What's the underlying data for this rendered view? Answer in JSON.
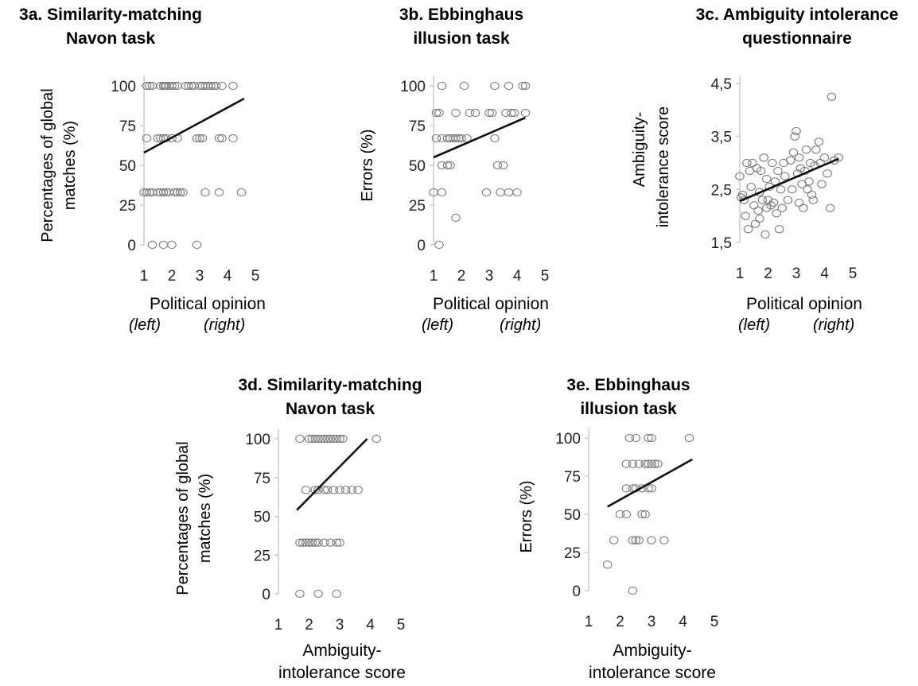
{
  "chart_data": [
    {
      "id": "3a",
      "type": "scatter",
      "title_lines": [
        "3a. Similarity-matching",
        "Navon task"
      ],
      "ylabel_lines": [
        "Percentages of global",
        "matches (%)"
      ],
      "xlabel": "Political opinion",
      "x_end_left": "(left)",
      "x_end_right": "(right)",
      "xlim": [
        1,
        5
      ],
      "ylim": [
        0,
        100
      ],
      "xticks": [
        "1",
        "2",
        "3",
        "4",
        "5"
      ],
      "yticks": [
        "0",
        "25",
        "50",
        "75",
        "100"
      ],
      "trendline": [
        [
          1,
          58
        ],
        [
          4.6,
          92
        ]
      ],
      "points": [
        [
          1.1,
          100
        ],
        [
          1.2,
          100
        ],
        [
          1.3,
          100
        ],
        [
          1.6,
          100
        ],
        [
          1.7,
          100
        ],
        [
          1.75,
          100
        ],
        [
          1.8,
          100
        ],
        [
          1.9,
          100
        ],
        [
          2.0,
          100
        ],
        [
          2.1,
          100
        ],
        [
          2.2,
          100
        ],
        [
          2.5,
          100
        ],
        [
          2.6,
          100
        ],
        [
          2.7,
          100
        ],
        [
          2.8,
          100
        ],
        [
          3.0,
          100
        ],
        [
          3.1,
          100
        ],
        [
          3.2,
          100
        ],
        [
          3.3,
          100
        ],
        [
          3.4,
          100
        ],
        [
          3.5,
          100
        ],
        [
          3.6,
          100
        ],
        [
          3.8,
          100
        ],
        [
          4.2,
          100
        ],
        [
          1.1,
          67
        ],
        [
          1.5,
          67
        ],
        [
          1.6,
          67
        ],
        [
          1.7,
          67
        ],
        [
          1.8,
          67
        ],
        [
          2.0,
          67
        ],
        [
          2.2,
          67
        ],
        [
          2.9,
          67
        ],
        [
          3.0,
          67
        ],
        [
          3.1,
          67
        ],
        [
          3.7,
          67
        ],
        [
          3.8,
          67
        ],
        [
          4.2,
          67
        ],
        [
          1.0,
          33
        ],
        [
          1.1,
          33
        ],
        [
          1.2,
          33
        ],
        [
          1.3,
          33
        ],
        [
          1.5,
          33
        ],
        [
          1.6,
          33
        ],
        [
          1.7,
          33
        ],
        [
          1.8,
          33
        ],
        [
          1.9,
          33
        ],
        [
          2.1,
          33
        ],
        [
          2.2,
          33
        ],
        [
          2.3,
          33
        ],
        [
          2.4,
          33
        ],
        [
          3.2,
          33
        ],
        [
          3.7,
          33
        ],
        [
          4.5,
          33
        ],
        [
          1.3,
          0
        ],
        [
          1.7,
          0
        ],
        [
          2.0,
          0
        ],
        [
          2.9,
          0
        ]
      ]
    },
    {
      "id": "3b",
      "type": "scatter",
      "title_lines": [
        "3b. Ebbinghaus",
        "illusion task"
      ],
      "ylabel_lines": [
        "Errors (%)"
      ],
      "xlabel": "Political opinion",
      "x_end_left": "(left)",
      "x_end_right": "(right)",
      "xlim": [
        1,
        5
      ],
      "ylim": [
        0,
        100
      ],
      "xticks": [
        "1",
        "2",
        "3",
        "4",
        "5"
      ],
      "yticks": [
        "0",
        "25",
        "50",
        "75",
        "100"
      ],
      "trendline": [
        [
          1,
          55
        ],
        [
          4.3,
          80
        ]
      ],
      "points": [
        [
          1.3,
          100
        ],
        [
          2.1,
          100
        ],
        [
          3.2,
          100
        ],
        [
          3.7,
          100
        ],
        [
          4.2,
          100
        ],
        [
          4.3,
          100
        ],
        [
          1.1,
          83
        ],
        [
          1.2,
          83
        ],
        [
          1.8,
          83
        ],
        [
          2.3,
          83
        ],
        [
          2.5,
          83
        ],
        [
          3.0,
          83
        ],
        [
          3.1,
          83
        ],
        [
          3.6,
          83
        ],
        [
          3.8,
          83
        ],
        [
          3.9,
          83
        ],
        [
          4.3,
          83
        ],
        [
          1.1,
          67
        ],
        [
          1.3,
          67
        ],
        [
          1.5,
          67
        ],
        [
          1.6,
          67
        ],
        [
          1.7,
          67
        ],
        [
          1.8,
          67
        ],
        [
          1.9,
          67
        ],
        [
          2.0,
          67
        ],
        [
          2.2,
          67
        ],
        [
          3.2,
          67
        ],
        [
          1.3,
          50
        ],
        [
          1.5,
          50
        ],
        [
          1.6,
          50
        ],
        [
          3.3,
          50
        ],
        [
          3.5,
          50
        ],
        [
          1.0,
          33
        ],
        [
          1.3,
          33
        ],
        [
          2.9,
          33
        ],
        [
          3.4,
          33
        ],
        [
          3.7,
          33
        ],
        [
          4.0,
          33
        ],
        [
          1.8,
          17
        ],
        [
          1.2,
          0
        ]
      ]
    },
    {
      "id": "3c",
      "type": "scatter",
      "title_lines": [
        "3c. Ambiguity intolerance",
        "questionnaire"
      ],
      "ylabel_lines": [
        "Ambiguity-",
        "intolerance score"
      ],
      "xlabel": "Political opinion",
      "x_end_left": "(left)",
      "x_end_right": "(right)",
      "xlim": [
        1,
        5
      ],
      "ylim": [
        1.5,
        4.5
      ],
      "xticks": [
        "1",
        "2",
        "3",
        "4",
        "5"
      ],
      "yticks": [
        "1,5",
        "2,5",
        "3,5",
        "4,5"
      ],
      "trendline": [
        [
          1,
          2.28
        ],
        [
          4.5,
          3.08
        ]
      ],
      "points": [
        [
          1.0,
          2.75
        ],
        [
          1.05,
          2.35
        ],
        [
          1.1,
          2.4
        ],
        [
          1.15,
          2.3
        ],
        [
          1.2,
          2.0
        ],
        [
          1.25,
          3.0
        ],
        [
          1.3,
          1.75
        ],
        [
          1.35,
          2.85
        ],
        [
          1.4,
          2.55
        ],
        [
          1.45,
          3.0
        ],
        [
          1.5,
          2.2
        ],
        [
          1.55,
          1.85
        ],
        [
          1.6,
          2.9
        ],
        [
          1.65,
          2.1
        ],
        [
          1.7,
          1.95
        ],
        [
          1.7,
          2.45
        ],
        [
          1.75,
          2.85
        ],
        [
          1.8,
          2.3
        ],
        [
          1.85,
          3.1
        ],
        [
          1.9,
          1.65
        ],
        [
          1.95,
          2.15
        ],
        [
          1.95,
          2.7
        ],
        [
          2.0,
          2.3
        ],
        [
          2.05,
          2.55
        ],
        [
          2.1,
          2.2
        ],
        [
          2.15,
          3.0
        ],
        [
          2.2,
          2.25
        ],
        [
          2.25,
          2.65
        ],
        [
          2.3,
          2.05
        ],
        [
          2.35,
          2.85
        ],
        [
          2.4,
          1.75
        ],
        [
          2.45,
          2.5
        ],
        [
          2.5,
          2.15
        ],
        [
          2.55,
          3.0
        ],
        [
          2.6,
          2.75
        ],
        [
          2.7,
          2.3
        ],
        [
          2.8,
          3.05
        ],
        [
          2.85,
          2.5
        ],
        [
          2.9,
          3.2
        ],
        [
          2.95,
          3.5
        ],
        [
          3.0,
          3.6
        ],
        [
          3.05,
          2.8
        ],
        [
          3.1,
          2.25
        ],
        [
          3.1,
          3.1
        ],
        [
          3.15,
          2.9
        ],
        [
          3.2,
          2.6
        ],
        [
          3.25,
          2.15
        ],
        [
          3.3,
          2.85
        ],
        [
          3.35,
          3.25
        ],
        [
          3.4,
          2.5
        ],
        [
          3.45,
          2.65
        ],
        [
          3.5,
          3.0
        ],
        [
          3.55,
          2.4
        ],
        [
          3.6,
          2.3
        ],
        [
          3.65,
          2.95
        ],
        [
          3.7,
          3.25
        ],
        [
          3.8,
          3.4
        ],
        [
          3.85,
          3.0
        ],
        [
          3.9,
          2.6
        ],
        [
          4.0,
          3.1
        ],
        [
          4.1,
          2.8
        ],
        [
          4.2,
          2.15
        ],
        [
          4.25,
          4.25
        ],
        [
          4.35,
          3.05
        ],
        [
          4.5,
          3.1
        ]
      ]
    },
    {
      "id": "3d",
      "type": "scatter",
      "title_lines": [
        "3d. Similarity-matching",
        "Navon task"
      ],
      "ylabel_lines": [
        "Percentages of global",
        "matches (%)"
      ],
      "xlabel_lines": [
        "Ambiguity-",
        "intolerance score"
      ],
      "xlim": [
        1,
        5
      ],
      "ylim": [
        0,
        100
      ],
      "xticks": [
        "1",
        "2",
        "3",
        "4",
        "5"
      ],
      "yticks": [
        "0",
        "25",
        "50",
        "75",
        "100"
      ],
      "trendline": [
        [
          1.6,
          54
        ],
        [
          3.9,
          100
        ]
      ],
      "points": [
        [
          1.7,
          100
        ],
        [
          2.0,
          100
        ],
        [
          2.1,
          100
        ],
        [
          2.2,
          100
        ],
        [
          2.3,
          100
        ],
        [
          2.4,
          100
        ],
        [
          2.5,
          100
        ],
        [
          2.6,
          100
        ],
        [
          2.7,
          100
        ],
        [
          2.8,
          100
        ],
        [
          2.9,
          100
        ],
        [
          3.0,
          100
        ],
        [
          3.1,
          100
        ],
        [
          4.2,
          100
        ],
        [
          1.9,
          67
        ],
        [
          2.2,
          67
        ],
        [
          2.3,
          67
        ],
        [
          2.5,
          67
        ],
        [
          2.6,
          67
        ],
        [
          2.8,
          67
        ],
        [
          3.0,
          67
        ],
        [
          3.2,
          67
        ],
        [
          3.4,
          67
        ],
        [
          3.6,
          67
        ],
        [
          1.7,
          33
        ],
        [
          1.8,
          33
        ],
        [
          1.9,
          33
        ],
        [
          2.0,
          33
        ],
        [
          2.1,
          33
        ],
        [
          2.2,
          33
        ],
        [
          2.3,
          33
        ],
        [
          2.5,
          33
        ],
        [
          2.7,
          33
        ],
        [
          2.9,
          33
        ],
        [
          3.0,
          33
        ],
        [
          1.7,
          0
        ],
        [
          2.3,
          0
        ],
        [
          2.9,
          0
        ]
      ]
    },
    {
      "id": "3e",
      "type": "scatter",
      "title_lines": [
        "3e. Ebbinghaus",
        "illusion task"
      ],
      "ylabel_lines": [
        "Errors (%)"
      ],
      "xlabel_lines": [
        "Ambiguity-",
        "intolerance score"
      ],
      "xlim": [
        1,
        5
      ],
      "ylim": [
        0,
        100
      ],
      "xticks": [
        "1",
        "2",
        "3",
        "4",
        "5"
      ],
      "yticks": [
        "0",
        "25",
        "50",
        "75",
        "100"
      ],
      "trendline": [
        [
          1.6,
          55
        ],
        [
          4.3,
          86
        ]
      ],
      "points": [
        [
          2.3,
          100
        ],
        [
          2.5,
          100
        ],
        [
          2.9,
          100
        ],
        [
          3.0,
          100
        ],
        [
          4.2,
          100
        ],
        [
          2.2,
          83
        ],
        [
          2.4,
          83
        ],
        [
          2.6,
          83
        ],
        [
          2.8,
          83
        ],
        [
          2.9,
          83
        ],
        [
          3.0,
          83
        ],
        [
          3.1,
          83
        ],
        [
          3.2,
          83
        ],
        [
          2.2,
          67
        ],
        [
          2.4,
          67
        ],
        [
          2.5,
          67
        ],
        [
          2.7,
          67
        ],
        [
          2.9,
          67
        ],
        [
          3.0,
          67
        ],
        [
          2.0,
          50
        ],
        [
          2.2,
          50
        ],
        [
          2.7,
          50
        ],
        [
          2.8,
          50
        ],
        [
          1.8,
          33
        ],
        [
          2.4,
          33
        ],
        [
          2.5,
          33
        ],
        [
          2.6,
          33
        ],
        [
          3.0,
          33
        ],
        [
          3.4,
          33
        ],
        [
          1.6,
          17
        ],
        [
          2.4,
          0
        ]
      ]
    }
  ]
}
